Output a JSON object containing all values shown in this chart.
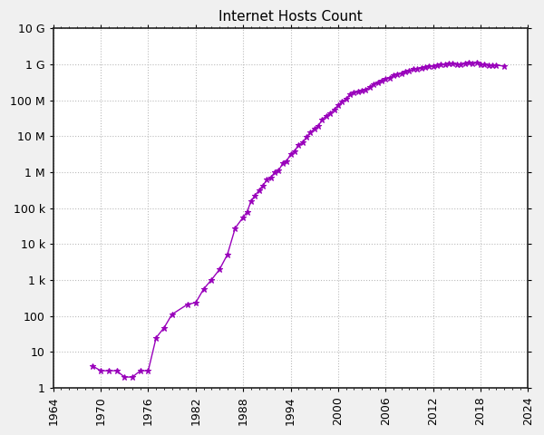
{
  "title": "Internet Hosts Count",
  "title_fontsize": 11,
  "line_color": "#9900BB",
  "marker": "*",
  "marker_size": 5,
  "linewidth": 1.0,
  "xlim": [
    1964,
    2024
  ],
  "ylim": [
    1,
    10000000000.0
  ],
  "xticks": [
    1964,
    1970,
    1976,
    1982,
    1988,
    1994,
    2000,
    2006,
    2012,
    2018,
    2024
  ],
  "ytick_labels": [
    "1",
    "10",
    "100",
    "1 k",
    "10 k",
    "100 k",
    "1 M",
    "10 M",
    "100 M",
    "1 G",
    "10 G"
  ],
  "ytick_values": [
    1,
    10,
    100,
    1000,
    10000,
    100000,
    1000000,
    10000000,
    100000000,
    1000000000,
    10000000000
  ],
  "background_color": "#f0f0f0",
  "plot_bg_color": "#ffffff",
  "grid_color": "#bbbbbb",
  "data": [
    [
      1969,
      4
    ],
    [
      1970,
      3
    ],
    [
      1971,
      3
    ],
    [
      1972,
      3
    ],
    [
      1973,
      2
    ],
    [
      1974,
      2
    ],
    [
      1975,
      3
    ],
    [
      1976,
      3
    ],
    [
      1977,
      25
    ],
    [
      1978,
      47
    ],
    [
      1979,
      111
    ],
    [
      1981,
      213
    ],
    [
      1982,
      235
    ],
    [
      1983,
      562
    ],
    [
      1984,
      1024
    ],
    [
      1985,
      1961
    ],
    [
      1986,
      5089
    ],
    [
      1987,
      28174
    ],
    [
      1988,
      56000
    ],
    [
      1988.5,
      80000
    ],
    [
      1989,
      159000
    ],
    [
      1989.5,
      227000
    ],
    [
      1990,
      313000
    ],
    [
      1990.5,
      430000
    ],
    [
      1991,
      617000
    ],
    [
      1991.5,
      727000
    ],
    [
      1992,
      992000
    ],
    [
      1992.5,
      1136000
    ],
    [
      1993,
      1776000
    ],
    [
      1993.5,
      2056000
    ],
    [
      1994,
      3212000
    ],
    [
      1994.5,
      3864000
    ],
    [
      1995,
      5846000
    ],
    [
      1995.5,
      6642000
    ],
    [
      1996,
      9472000
    ],
    [
      1996.5,
      12881000
    ],
    [
      1997,
      16146000
    ],
    [
      1997.5,
      19540000
    ],
    [
      1998,
      29670000
    ],
    [
      1998.5,
      36739000
    ],
    [
      1999,
      43230000
    ],
    [
      1999.5,
      56218000
    ],
    [
      2000,
      72398092
    ],
    [
      2000.5,
      93047785
    ],
    [
      2001,
      109574429
    ],
    [
      2001.5,
      147344723
    ],
    [
      2002,
      162128493
    ],
    [
      2002.5,
      171638297
    ],
    [
      2003,
      186155368
    ],
    [
      2003.5,
      203187027
    ],
    [
      2004,
      233101481
    ],
    [
      2004.5,
      285139107
    ],
    [
      2005,
      317646084
    ],
    [
      2005.5,
      353284187
    ],
    [
      2006,
      394991609
    ],
    [
      2006.5,
      433193199
    ],
    [
      2007,
      489774269
    ],
    [
      2007.5,
      541677360
    ],
    [
      2008,
      570937778
    ],
    [
      2008.5,
      625226456
    ],
    [
      2009,
      681064561
    ],
    [
      2009.5,
      732740444
    ],
    [
      2010,
      768913037
    ],
    [
      2010.5,
      818374269
    ],
    [
      2011,
      849869096
    ],
    [
      2011.5,
      888239420
    ],
    [
      2012,
      908631177
    ],
    [
      2012.5,
      969540473
    ],
    [
      2013,
      994648688
    ],
    [
      2013.5,
      1008799665
    ],
    [
      2014,
      1042339747
    ],
    [
      2014.5,
      1046084249
    ],
    [
      2015,
      1012758573
    ],
    [
      2015.5,
      1000528270
    ],
    [
      2016,
      1073271561
    ],
    [
      2016.5,
      1097424598
    ],
    [
      2017,
      1087540560
    ],
    [
      2017.5,
      1138257376
    ],
    [
      2018,
      1020867100
    ],
    [
      2018.5,
      998680813
    ],
    [
      2019,
      929231206
    ],
    [
      2019.5,
      967837779
    ],
    [
      2020,
      956099509
    ],
    [
      2021,
      897570897
    ]
  ]
}
